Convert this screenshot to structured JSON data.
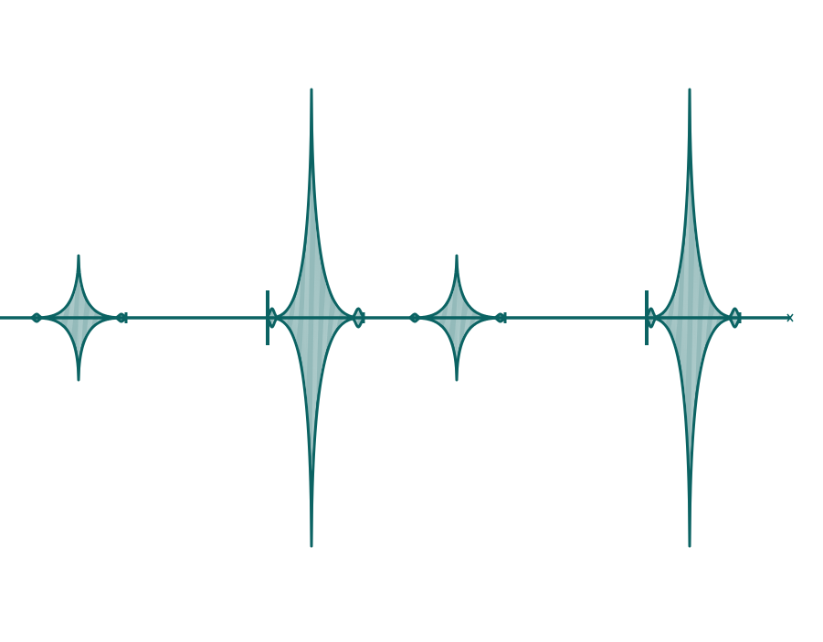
{
  "figure": {
    "stroke_color": "#0b6363",
    "fill_color": "#0b6363",
    "background_color": "#ffffff",
    "bursts": [
      {
        "kind": "small"
      },
      {
        "kind": "large"
      },
      {
        "kind": "small"
      },
      {
        "kind": "large"
      }
    ]
  }
}
